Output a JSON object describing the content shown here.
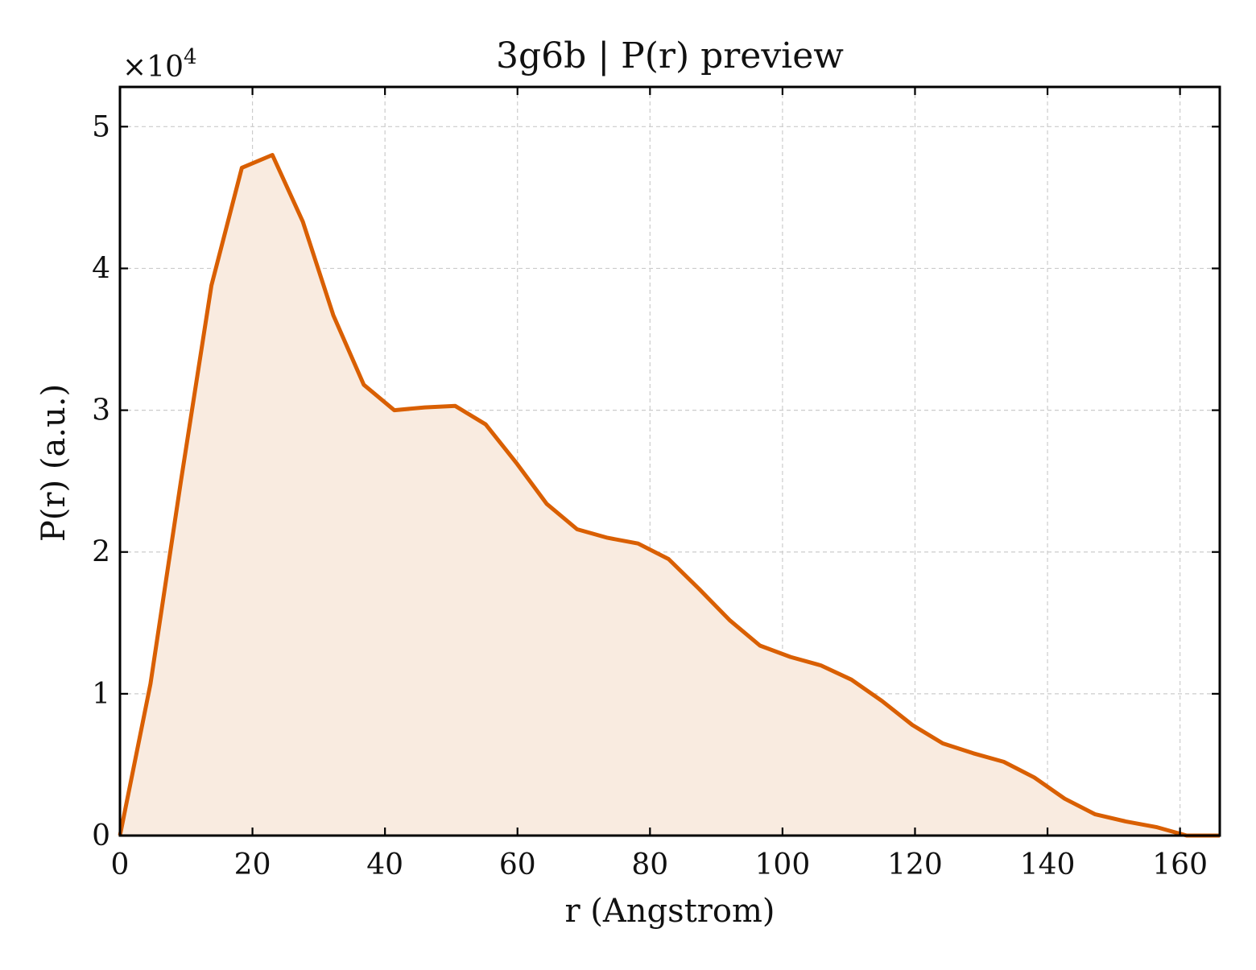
{
  "chart_data": {
    "type": "area",
    "title": "3g6b | P(r) preview",
    "xlabel": "r (Angstrom)",
    "ylabel": "P(r) (a.u.)",
    "y_multiplier_label": "×10",
    "y_multiplier_exponent": "4",
    "xlim": [
      0,
      166
    ],
    "ylim": [
      0,
      5.28
    ],
    "x_ticks": [
      0,
      20,
      40,
      60,
      80,
      100,
      120,
      140,
      160
    ],
    "y_ticks": [
      0,
      1,
      2,
      3,
      4,
      5
    ],
    "grid": true,
    "colors": {
      "line": "#d95f02",
      "fill": "#f9ebe0",
      "grid": "#cccccc",
      "axes": "#000000"
    },
    "series": [
      {
        "x": [
          0,
          4.6,
          9.2,
          13.8,
          18.4,
          23.0,
          27.6,
          32.2,
          36.8,
          41.4,
          46.0,
          50.6,
          55.2,
          59.8,
          64.4,
          69.0,
          73.6,
          78.2,
          82.8,
          87.4,
          92.0,
          96.6,
          101.2,
          105.8,
          110.4,
          115.0,
          119.6,
          124.2,
          128.8,
          133.4,
          138.0,
          142.6,
          147.2,
          151.8,
          156.4,
          161.0,
          166.0
        ],
        "values": [
          0.0,
          1.07,
          2.5,
          3.88,
          4.71,
          4.8,
          4.33,
          3.67,
          3.18,
          3.0,
          3.02,
          3.03,
          2.9,
          2.63,
          2.34,
          2.16,
          2.1,
          2.06,
          1.95,
          1.74,
          1.52,
          1.34,
          1.26,
          1.2,
          1.1,
          0.95,
          0.78,
          0.65,
          0.58,
          0.52,
          0.41,
          0.26,
          0.15,
          0.1,
          0.06,
          0.0,
          0.0
        ]
      }
    ]
  }
}
